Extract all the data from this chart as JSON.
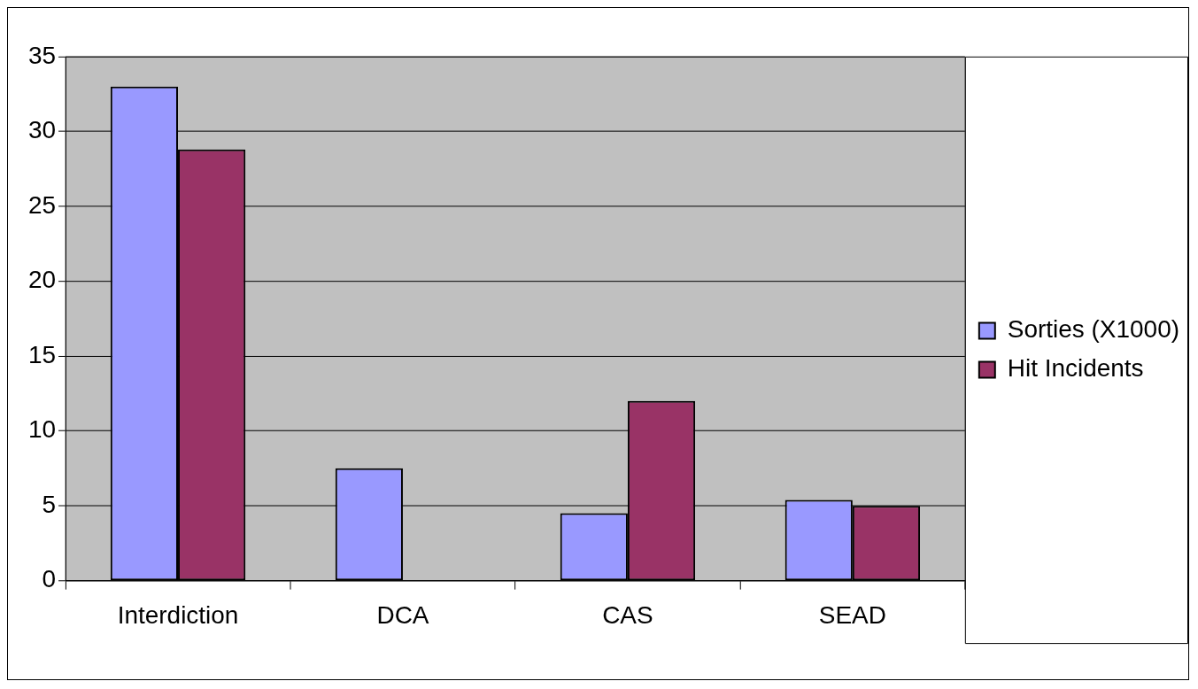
{
  "chart_data": {
    "type": "bar",
    "categories": [
      "Interdiction",
      "DCA",
      "CAS",
      "SEAD"
    ],
    "series": [
      {
        "name": "Sorties (X1000)",
        "color": "#9999ff",
        "values": [
          33,
          7.5,
          4.5,
          5.4
        ]
      },
      {
        "name": "Hit Incidents",
        "color": "#993366",
        "values": [
          28.8,
          0,
          12,
          5
        ]
      }
    ],
    "ylim": [
      0,
      35
    ],
    "yticks": [
      0,
      5,
      10,
      15,
      20,
      25,
      30,
      35
    ],
    "grid": "y",
    "legend": "right"
  }
}
